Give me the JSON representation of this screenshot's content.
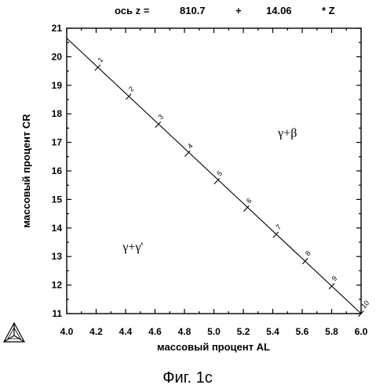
{
  "header": {
    "axis_label": "ось z =",
    "intercept": "810.7",
    "plus": "+",
    "slope": "14.06",
    "multiplier": "* Z"
  },
  "caption": "Фиг. 1с",
  "chart_data": {
    "type": "line",
    "xlabel": "массовый процент  AL",
    "ylabel": "массовый процент  CR",
    "xlim": [
      4.0,
      6.0
    ],
    "ylim": [
      11,
      21
    ],
    "x_ticks": [
      "4.0",
      "4.2",
      "4.4",
      "4.6",
      "4.8",
      "5.0",
      "5.2",
      "5.4",
      "5.6",
      "5.8",
      "6.0"
    ],
    "y_ticks": [
      "11",
      "12",
      "13",
      "14",
      "15",
      "16",
      "17",
      "18",
      "19",
      "20",
      "21"
    ],
    "line": {
      "x": [
        4.0,
        6.0
      ],
      "y": [
        20.65,
        11.0
      ]
    },
    "points": [
      {
        "label": "1",
        "x": 4.21,
        "y": 19.62
      },
      {
        "label": "2",
        "x": 4.42,
        "y": 18.6
      },
      {
        "label": "3",
        "x": 4.62,
        "y": 17.62
      },
      {
        "label": "4",
        "x": 4.82,
        "y": 16.6
      },
      {
        "label": "5",
        "x": 5.02,
        "y": 15.64
      },
      {
        "label": "6",
        "x": 5.22,
        "y": 14.68
      },
      {
        "label": "7",
        "x": 5.42,
        "y": 13.76
      },
      {
        "label": "8",
        "x": 5.62,
        "y": 12.84
      },
      {
        "label": "9",
        "x": 5.8,
        "y": 11.96
      },
      {
        "label": "10",
        "x": 6.0,
        "y": 11.0
      }
    ],
    "regions": [
      {
        "label": "γ+β",
        "x": 5.5,
        "y": 17.2
      },
      {
        "label": "γ+γ'",
        "x": 4.45,
        "y": 13.2
      }
    ],
    "grid": false
  },
  "logo_icon": "triangle-logo-icon"
}
